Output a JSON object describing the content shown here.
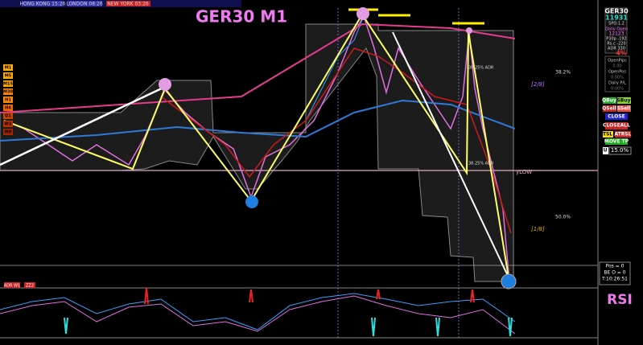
{
  "sessions": {
    "hong_kong": "HONG KONG 15:26",
    "london": "LONDON 08:26",
    "new_york": "NEW YORK 03:26"
  },
  "symbol": "GER30 M1",
  "timeframes": [
    "M1",
    "M5",
    "M15",
    "M30",
    "H1",
    "H4",
    "D1",
    "W1",
    "MN"
  ],
  "levels": {
    "fib_upper": "38.2%",
    "octave_upper": "[2/8]",
    "fib_lower": "50.0%",
    "octave_lower": "[1/8]",
    "ylow": "yLOW",
    "adr_upper": "38.25% ADR",
    "adr_lower": "38.25% ADR"
  },
  "indicator_tags": [
    "ADR W1",
    "ZZ2"
  ],
  "indicator_title": "RSI",
  "panel": {
    "symbol": "GER30",
    "price": "11931",
    "spread": "SPD:1.2",
    "daily_open_label": "Daily Open",
    "daily_open": "12123",
    "p30p": "P30p -192",
    "rsc": "Rs.c -220",
    "adr": "ADR 330",
    "percent": "4%",
    "open_pips_label": "OpenPips",
    "open_pips": "0.00",
    "open_pos_label": "OpenPos",
    "open_pos": "0.00%",
    "daily_pl_label": "Daily P/L",
    "daily_pl": "0.00%"
  },
  "buttons": {
    "qbuy": "QBuy",
    "sbuy": "SBuy",
    "qsell": "QSell",
    "ssell": "SSell",
    "close": "CLOSE",
    "closeall": "CLOSEALL",
    "tsl": "TSL",
    "atrsl": "ATRSL",
    "move_tp": "MOVE TP",
    "u": "U",
    "risk": "15.0%"
  },
  "status": {
    "pos": "Pos = 0",
    "be": "BE O = 0",
    "time": "T:10:26:51"
  }
}
